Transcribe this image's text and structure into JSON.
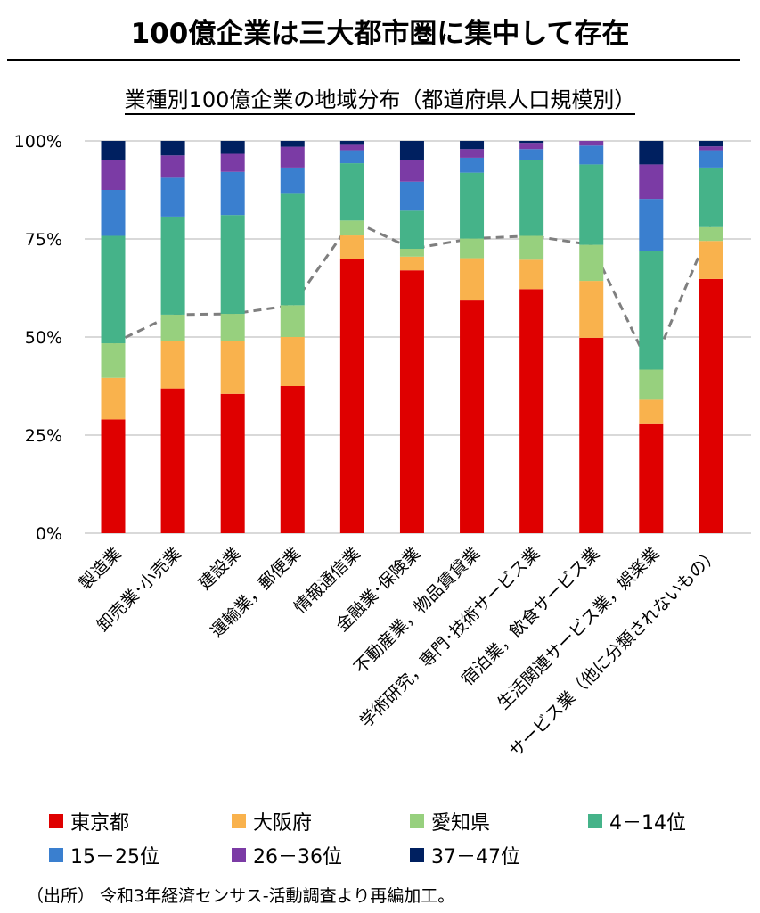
{
  "title": "100億企業は三大都市圏に集中して存在",
  "source": "（出所） 令和3年経済センサス-活動調査より再編加工。",
  "chart_data": {
    "type": "bar",
    "stacked": true,
    "title": "業種別100億企業の地域分布（都道府県人口規模別）",
    "xlabel": "",
    "ylabel": "",
    "ylim": [
      0,
      100
    ],
    "yticks": [
      "0%",
      "25%",
      "50%",
      "75%",
      "100%"
    ],
    "grid": true,
    "legend_position": "bottom",
    "categories": [
      "製造業",
      "卸売業･小売業",
      "建設業",
      "運輸業，郵便業",
      "情報通信業",
      "金融業･保険業",
      "不動産業，物品賃貸業",
      "学術研究，専門･技術サービス業",
      "宿泊業，飲食サービス業",
      "生活関連サービス業，娯楽業",
      "サービス業（他に分類されないもの）"
    ],
    "series": [
      {
        "name": "東京都",
        "color": "#DF0000",
        "values": [
          29.0,
          36.9,
          35.5,
          37.5,
          69.8,
          67.0,
          59.3,
          62.2,
          49.8,
          28.0,
          64.8
        ]
      },
      {
        "name": "大阪府",
        "color": "#F9B24D",
        "values": [
          10.6,
          12.0,
          13.5,
          12.5,
          6.1,
          3.5,
          10.8,
          7.5,
          14.5,
          6.0,
          9.7
        ]
      },
      {
        "name": "愛知県",
        "color": "#97D07E",
        "values": [
          8.8,
          6.8,
          6.9,
          8.1,
          3.8,
          2.0,
          5.0,
          6.1,
          9.2,
          7.7,
          3.5
        ]
      },
      {
        "name": "4－14位",
        "color": "#45B389",
        "values": [
          27.4,
          25.0,
          25.2,
          28.4,
          14.6,
          9.7,
          16.8,
          19.2,
          20.5,
          30.3,
          15.2
        ]
      },
      {
        "name": "15－25位",
        "color": "#3A7FCF",
        "values": [
          11.7,
          9.9,
          11.0,
          6.7,
          3.3,
          7.4,
          3.8,
          2.9,
          4.8,
          13.2,
          4.4
        ]
      },
      {
        "name": "26－36位",
        "color": "#7B3BA5",
        "values": [
          7.5,
          5.7,
          4.6,
          5.3,
          1.4,
          5.6,
          2.2,
          1.6,
          1.2,
          8.8,
          1.0
        ]
      },
      {
        "name": "37－47位",
        "color": "#002060",
        "values": [
          5.0,
          3.7,
          3.3,
          1.5,
          1.0,
          4.8,
          2.1,
          0.5,
          0.0,
          6.0,
          1.4
        ]
      }
    ],
    "reference_line": {
      "style": "dashed",
      "color": "#7F7F7F",
      "description_series": [
        "東京都",
        "大阪府",
        "愛知県"
      ]
    }
  }
}
